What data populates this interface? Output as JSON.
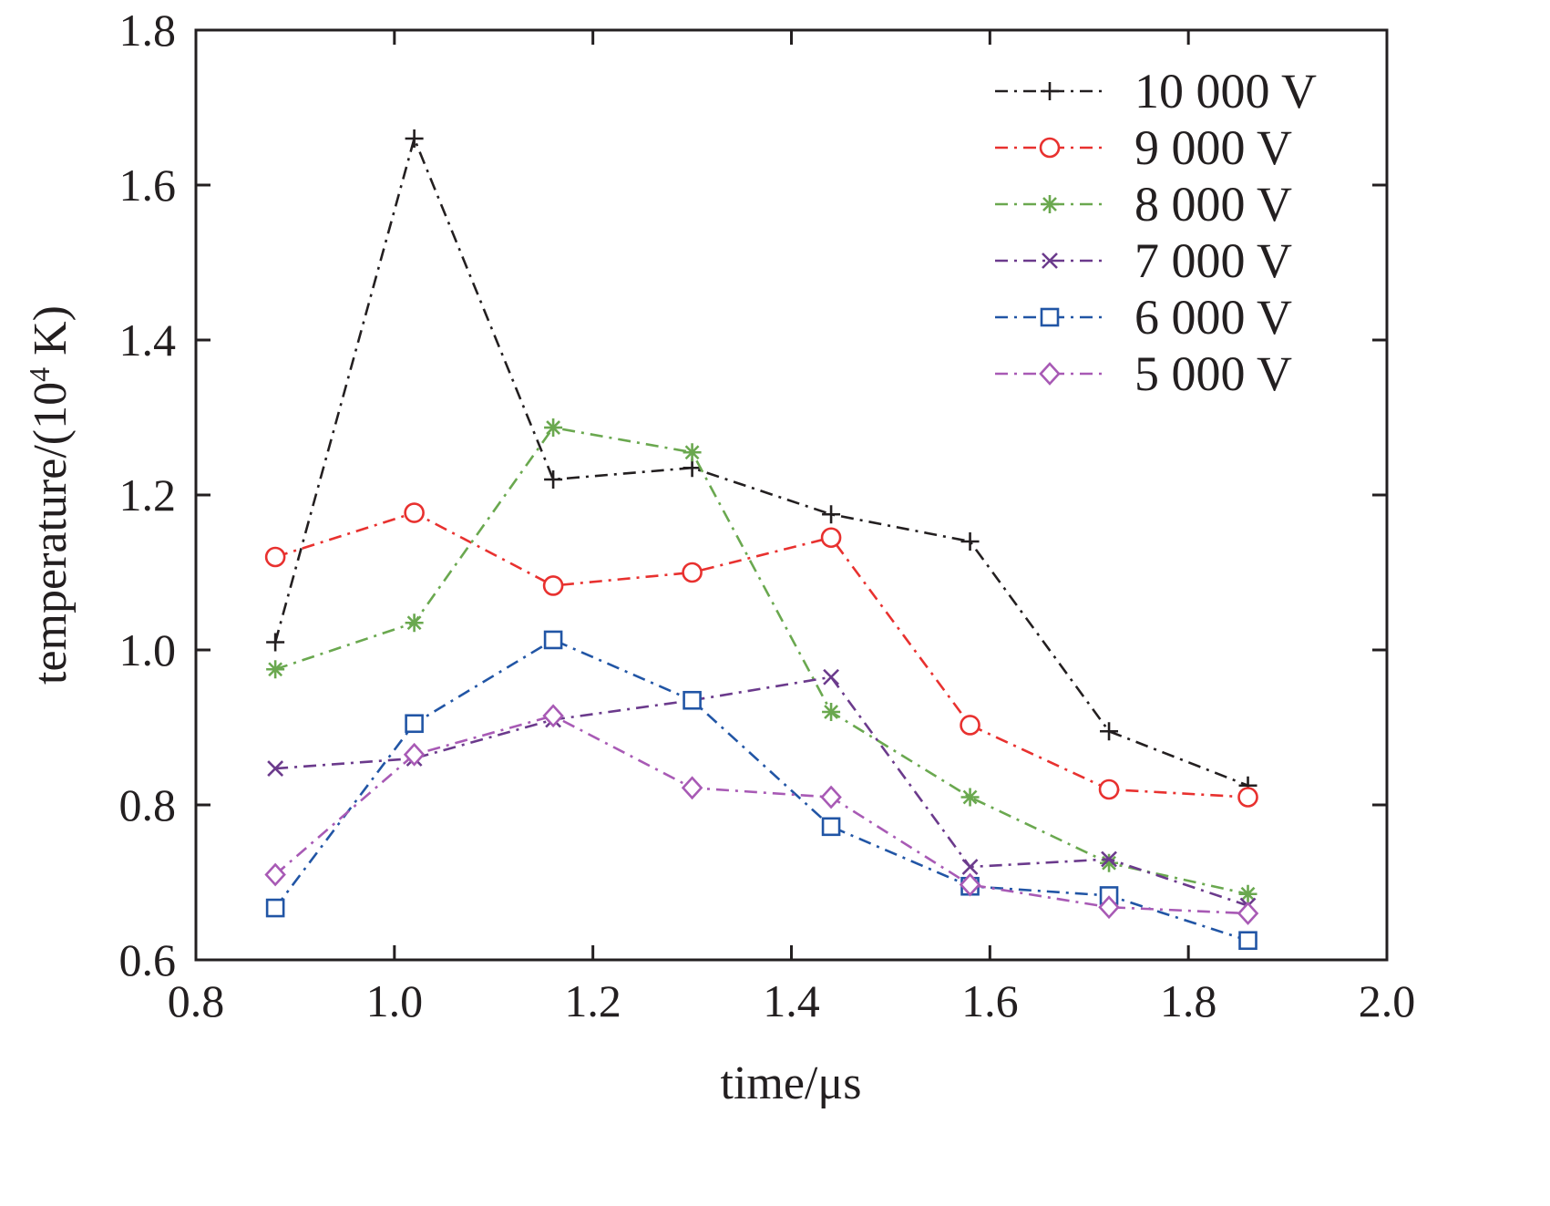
{
  "chart_data": {
    "type": "line",
    "xlabel": "time/μs",
    "ylabel_prefix": "temperature/(10",
    "ylabel_sup": "4",
    "ylabel_suffix": " K)",
    "xlim": [
      0.8,
      2.0
    ],
    "ylim": [
      0.6,
      1.8
    ],
    "xticks": [
      "0.8",
      "1.0",
      "1.2",
      "1.4",
      "1.6",
      "1.8",
      "2.0"
    ],
    "yticks": [
      "0.6",
      "0.8",
      "1.0",
      "1.2",
      "1.4",
      "1.6",
      "1.8"
    ],
    "grid": false,
    "legend_position": "top-right",
    "x": [
      0.88,
      1.02,
      1.16,
      1.3,
      1.44,
      1.58,
      1.72,
      1.86
    ],
    "series": [
      {
        "name": "10 000 V",
        "color": "#231f20",
        "marker": "plus",
        "values": [
          1.01,
          1.66,
          1.22,
          1.235,
          1.175,
          1.14,
          0.895,
          0.825
        ]
      },
      {
        "name": "9 000 V",
        "color": "#e8312f",
        "marker": "circle",
        "values": [
          1.12,
          1.177,
          1.083,
          1.1,
          1.145,
          0.903,
          0.82,
          0.81
        ]
      },
      {
        "name": "8 000 V",
        "color": "#6aa84f",
        "marker": "asterisk",
        "values": [
          0.975,
          1.035,
          1.287,
          1.255,
          0.92,
          0.81,
          0.725,
          0.685
        ]
      },
      {
        "name": "7 000 V",
        "color": "#6b3a8c",
        "marker": "cross",
        "values": [
          0.847,
          0.86,
          0.91,
          0.935,
          0.965,
          0.72,
          0.73,
          0.67
        ]
      },
      {
        "name": "6 000 V",
        "color": "#2155a5",
        "marker": "square",
        "values": [
          0.667,
          0.905,
          1.013,
          0.935,
          0.772,
          0.695,
          0.683,
          0.625
        ]
      },
      {
        "name": "5 000 V",
        "color": "#a85ab5",
        "marker": "diamond",
        "values": [
          0.71,
          0.865,
          0.915,
          0.822,
          0.81,
          0.697,
          0.668,
          0.66
        ]
      }
    ]
  }
}
